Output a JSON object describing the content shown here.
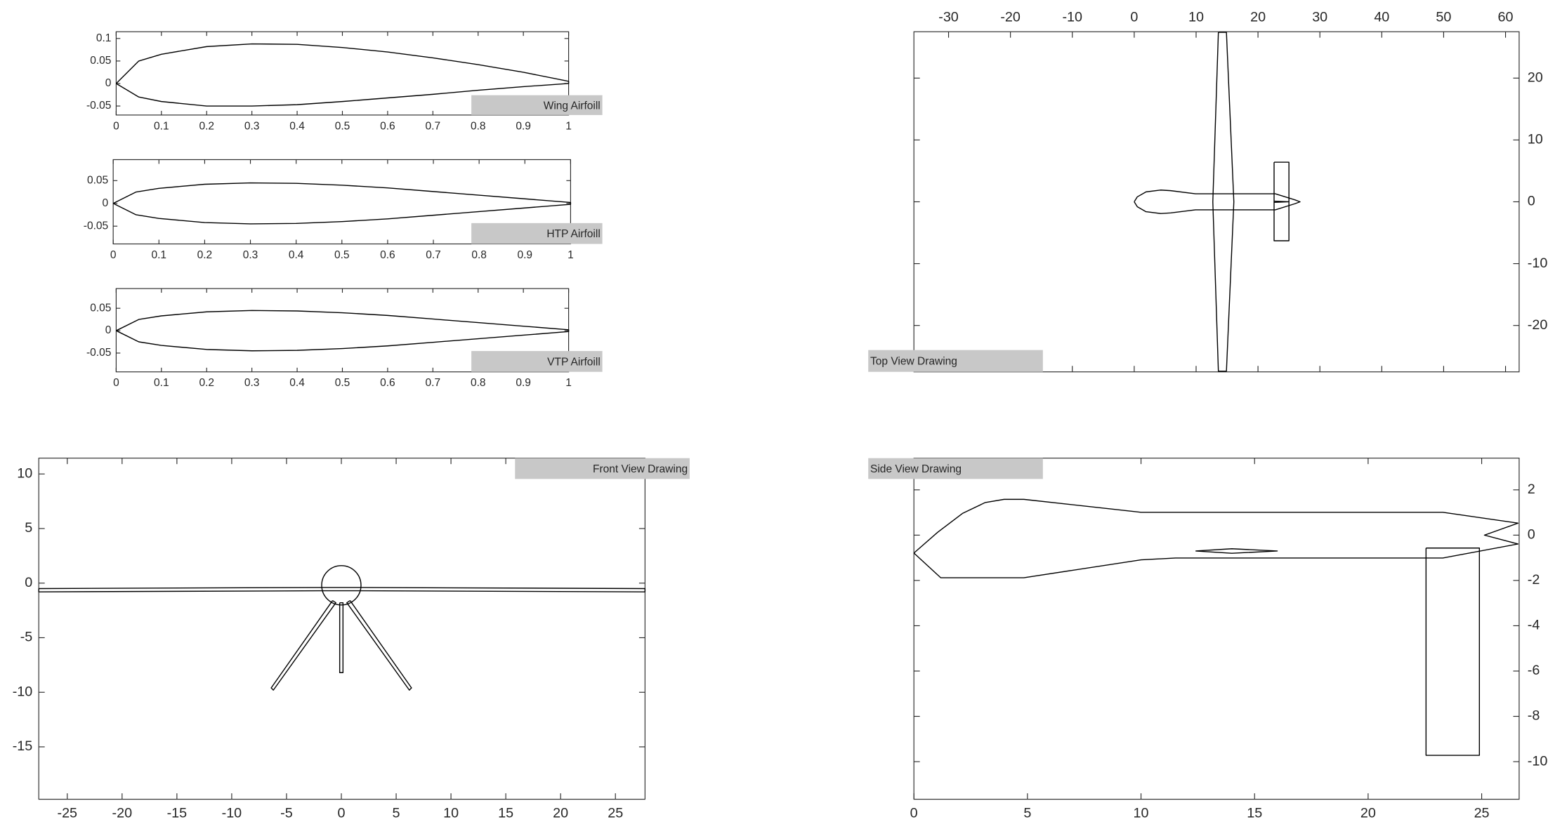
{
  "chart_data": [
    {
      "type": "line",
      "label": "Wing Airfoill",
      "xaxis_location": "bottom",
      "yaxis_location": "left",
      "xlim": [
        0,
        1
      ],
      "ylim": [
        -0.07,
        0.115
      ],
      "xticks": [
        0,
        0.1,
        0.2,
        0.3,
        0.4,
        0.5,
        0.6,
        0.7,
        0.8,
        0.9,
        1
      ],
      "yticks": [
        -0.05,
        0,
        0.05,
        0.1
      ],
      "series": [
        {
          "color": "#000000",
          "x": [
            0,
            0.05,
            0.1,
            0.2,
            0.3,
            0.4,
            0.5,
            0.6,
            0.7,
            0.8,
            0.9,
            1,
            1,
            0.9,
            0.8,
            0.7,
            0.6,
            0.5,
            0.4,
            0.3,
            0.2,
            0.1,
            0.05,
            0
          ],
          "y": [
            0,
            0.05,
            0.065,
            0.082,
            0.088,
            0.087,
            0.08,
            0.07,
            0.057,
            0.042,
            0.025,
            0.005,
            0,
            -0.007,
            -0.015,
            -0.024,
            -0.032,
            -0.04,
            -0.047,
            -0.05,
            -0.05,
            -0.04,
            -0.03,
            0
          ]
        }
      ]
    },
    {
      "type": "line",
      "label": "HTP Airfoill",
      "xaxis_location": "bottom",
      "yaxis_location": "left",
      "xlim": [
        0,
        1
      ],
      "ylim": [
        -0.089,
        0.096
      ],
      "xticks": [
        0,
        0.1,
        0.2,
        0.3,
        0.4,
        0.5,
        0.6,
        0.7,
        0.8,
        0.9,
        1
      ],
      "yticks": [
        -0.05,
        0,
        0.05
      ],
      "series": [
        {
          "color": "#000000",
          "x": [
            0,
            0.05,
            0.1,
            0.2,
            0.3,
            0.4,
            0.5,
            0.6,
            0.7,
            0.8,
            0.9,
            1,
            1,
            0.9,
            0.8,
            0.7,
            0.6,
            0.5,
            0.4,
            0.3,
            0.2,
            0.1,
            0.05,
            0
          ],
          "y": [
            0,
            0.025,
            0.033,
            0.042,
            0.045,
            0.044,
            0.04,
            0.034,
            0.026,
            0.018,
            0.01,
            0.002,
            -0.002,
            -0.01,
            -0.018,
            -0.026,
            -0.034,
            -0.04,
            -0.044,
            -0.045,
            -0.042,
            -0.033,
            -0.025,
            0
          ]
        }
      ]
    },
    {
      "type": "line",
      "label": "VTP Airfoill",
      "xaxis_location": "bottom",
      "yaxis_location": "left",
      "xlim": [
        0,
        1
      ],
      "ylim": [
        -0.092,
        0.094
      ],
      "xticks": [
        0,
        0.1,
        0.2,
        0.3,
        0.4,
        0.5,
        0.6,
        0.7,
        0.8,
        0.9,
        1
      ],
      "yticks": [
        -0.05,
        0,
        0.05
      ],
      "series": [
        {
          "color": "#000000",
          "x": [
            0,
            0.05,
            0.1,
            0.2,
            0.3,
            0.4,
            0.5,
            0.6,
            0.7,
            0.8,
            0.9,
            1,
            1,
            0.9,
            0.8,
            0.7,
            0.6,
            0.5,
            0.4,
            0.3,
            0.2,
            0.1,
            0.05,
            0
          ],
          "y": [
            0,
            0.025,
            0.033,
            0.042,
            0.045,
            0.044,
            0.04,
            0.034,
            0.026,
            0.018,
            0.01,
            0.002,
            -0.002,
            -0.01,
            -0.018,
            -0.026,
            -0.034,
            -0.04,
            -0.044,
            -0.045,
            -0.042,
            -0.033,
            -0.025,
            0
          ]
        }
      ]
    },
    {
      "type": "line",
      "label": "Top View Drawing",
      "xaxis_location": "top",
      "yaxis_location": "right",
      "xlim": [
        -35.6,
        62.2
      ],
      "ylim": [
        -27.5,
        27.5
      ],
      "xticks": [
        -30,
        -20,
        -10,
        0,
        10,
        20,
        30,
        40,
        50,
        60
      ],
      "yticks": [
        -20,
        -10,
        0,
        10,
        20
      ],
      "series": [
        {
          "color": "#000000",
          "x": [
            0,
            0.5,
            1.9,
            4.3,
            5.9,
            9.9,
            22.8,
            26,
            26.8,
            26,
            22.8,
            9.9,
            5.9,
            4.3,
            1.9,
            0.5,
            0
          ],
          "y": [
            0,
            0.8,
            1.6,
            1.9,
            1.8,
            1.3,
            1.3,
            0.3,
            0,
            -0.3,
            -1.3,
            -1.3,
            -1.8,
            -1.9,
            -1.6,
            -0.8,
            0
          ]
        },
        {
          "color": "#000000",
          "x": [
            13.6,
            14.9,
            16.1,
            14.9,
            13.6,
            12.7,
            13.6
          ],
          "y": [
            27.4,
            27.4,
            0,
            -27.4,
            -27.4,
            0,
            27.4
          ]
        },
        {
          "color": "#000000",
          "x": [
            22.6,
            25,
            25,
            22.6,
            22.6
          ],
          "y": [
            6.4,
            6.4,
            -6.3,
            -6.3,
            6.4
          ]
        },
        {
          "color": "#000000",
          "x": [
            22.6,
            25,
            22.6
          ],
          "y": [
            0.1,
            0,
            -0.1
          ]
        }
      ]
    },
    {
      "type": "line",
      "label": "Front View Drawing",
      "xaxis_location": "bottom",
      "yaxis_location": "left",
      "xlim": [
        -27.6,
        27.7
      ],
      "ylim": [
        -19.8,
        11.45
      ],
      "xticks": [
        -25,
        -20,
        -15,
        -10,
        -5,
        0,
        5,
        10,
        15,
        20,
        25
      ],
      "yticks": [
        -15,
        -10,
        -5,
        0,
        5,
        10
      ],
      "circles": [
        {
          "cx": 0,
          "cy": -0.2,
          "r": 1.8
        }
      ],
      "series": [
        {
          "color": "#000000",
          "x": [
            -27.6,
            -1.8,
            1.8,
            27.7,
            27.7,
            1.8,
            -1.8,
            -27.6,
            -27.6
          ],
          "y": [
            -0.5,
            -0.4,
            -0.4,
            -0.5,
            -0.8,
            -0.7,
            -0.7,
            -0.8,
            -0.5
          ]
        },
        {
          "color": "#000000",
          "x": [
            -0.8,
            -6.4,
            -6.2,
            -0.5,
            -0.8
          ],
          "y": [
            -1.6,
            -9.6,
            -9.8,
            -1.8,
            -1.6
          ]
        },
        {
          "color": "#000000",
          "x": [
            0.8,
            6.4,
            6.2,
            0.5,
            0.8
          ],
          "y": [
            -1.6,
            -9.6,
            -9.8,
            -1.8,
            -1.6
          ]
        },
        {
          "color": "#000000",
          "x": [
            -0.15,
            0.15,
            0.15,
            -0.15,
            -0.15
          ],
          "y": [
            -1.8,
            -1.8,
            -8.2,
            -8.2,
            -1.8
          ]
        }
      ]
    },
    {
      "type": "line",
      "label": "Side View Drawing",
      "xaxis_location": "bottom",
      "yaxis_location": "right",
      "xlim": [
        0,
        26.65
      ],
      "ylim": [
        -11.66,
        3.4
      ],
      "xticks": [
        0,
        5,
        10,
        15,
        20,
        25
      ],
      "yticks": [
        -10,
        -8,
        -6,
        -4,
        -2,
        0,
        2
      ],
      "series": [
        {
          "color": "#000000",
          "x": [
            0,
            1.05,
            2.14,
            3.14,
            3.97,
            4.84,
            10,
            23.29,
            26.6,
            25.12,
            26.6,
            23.29,
            11.52,
            10,
            4.84,
            1.18,
            0
          ],
          "y": [
            -0.79,
            0.13,
            0.96,
            1.44,
            1.58,
            1.58,
            1.01,
            1.01,
            0.53,
            0,
            -0.39,
            -1.01,
            -1.01,
            -1.09,
            -1.88,
            -1.88,
            -0.79
          ]
        },
        {
          "color": "#000000",
          "x": [
            12.4,
            14,
            16,
            14,
            12.4
          ],
          "y": [
            -0.7,
            -0.6,
            -0.7,
            -0.8,
            -0.7
          ]
        },
        {
          "color": "#000000",
          "x": [
            22.55,
            24.9,
            24.9,
            22.55,
            22.55
          ],
          "y": [
            -0.57,
            -0.57,
            -9.72,
            -9.72,
            -0.57
          ]
        }
      ]
    }
  ]
}
